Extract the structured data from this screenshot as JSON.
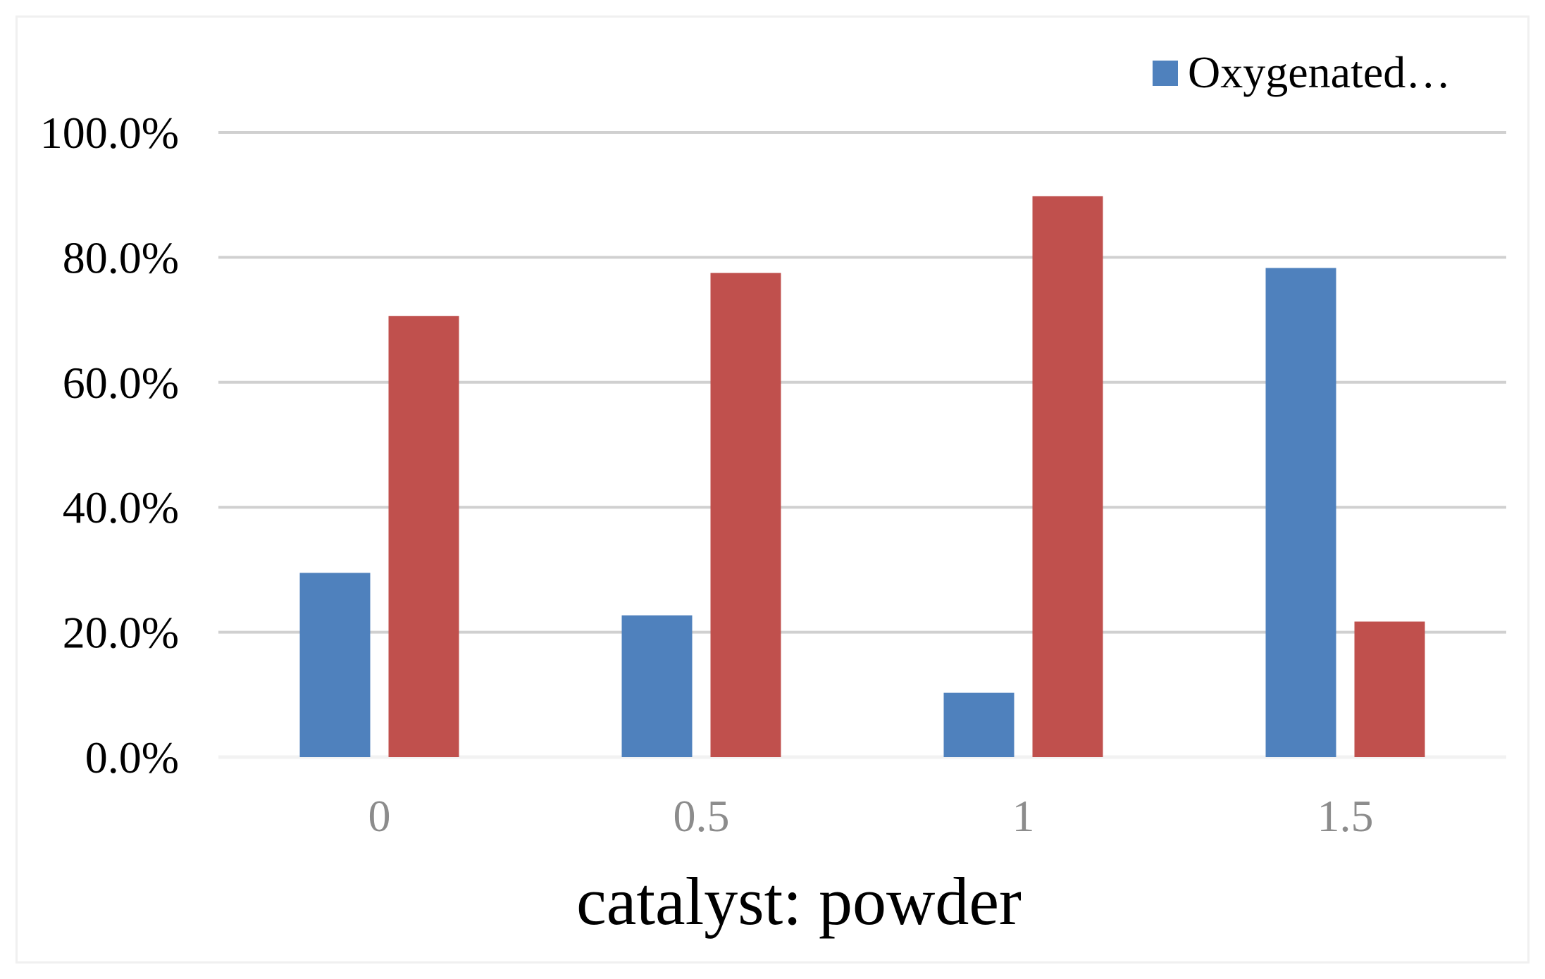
{
  "chart_data": {
    "type": "bar",
    "title": "",
    "xlabel": "catalyst: powder",
    "ylabel": "",
    "categories": [
      "0",
      "0.5",
      "1",
      "1.5"
    ],
    "y_tick_labels": [
      "0.0%",
      "20.0%",
      "40.0%",
      "60.0%",
      "80.0%",
      "100.0%"
    ],
    "ylim": [
      0,
      100
    ],
    "y_unit": "%",
    "grid": true,
    "legend_position": "top-right",
    "series": [
      {
        "name": "Oxygenated…",
        "color": "#4f81bd",
        "values": [
          29.5,
          22.7,
          10.3,
          78.3
        ]
      },
      {
        "color": "#c0504d",
        "values": [
          70.6,
          77.5,
          89.8,
          21.7
        ]
      }
    ]
  }
}
